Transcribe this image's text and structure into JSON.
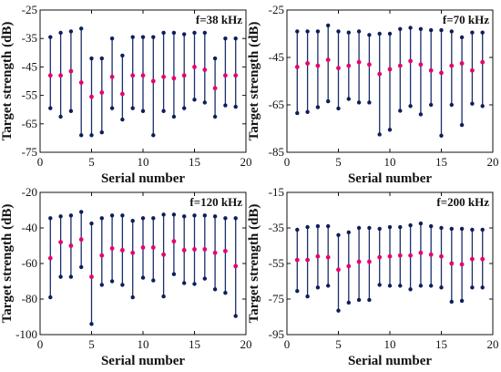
{
  "chart_data": [
    {
      "type": "errorbar",
      "annotation": "f=38 kHz",
      "xlabel": "Serial number",
      "ylabel": "Target strength (dB)",
      "xlim": [
        0,
        20
      ],
      "ylim": [
        -75,
        -25
      ],
      "xticks": [
        0,
        5,
        10,
        15,
        20
      ],
      "yticks": [
        -25,
        -35,
        -45,
        -55,
        -65,
        -75
      ],
      "x": [
        1,
        2,
        3,
        4,
        5,
        6,
        7,
        8,
        9,
        10,
        11,
        12,
        13,
        14,
        15,
        16,
        17,
        18,
        19
      ],
      "mean": [
        -48,
        -48,
        -46.5,
        -50.5,
        -55.5,
        -54,
        -48.5,
        -54.5,
        -48,
        -48,
        -50,
        -48.5,
        -49,
        -48,
        -45,
        -46,
        -52.5,
        -48,
        -48
      ],
      "max": [
        -34.5,
        -33,
        -32.5,
        -31.5,
        -42,
        -42,
        -35,
        -41,
        -34.5,
        -34.5,
        -34.5,
        -33,
        -33,
        -33.5,
        -33,
        -33,
        -42,
        -35,
        -35
      ],
      "min": [
        -59.5,
        -62.5,
        -60.5,
        -69,
        -69,
        -68,
        -59.5,
        -63.5,
        -59.5,
        -60.5,
        -69,
        -60.5,
        -62.5,
        -59.5,
        -56.5,
        -57.5,
        -62.5,
        -58.5,
        -59
      ]
    },
    {
      "type": "errorbar",
      "annotation": "f=70 kHz",
      "xlabel": "Serial number",
      "ylabel": "Target strength (dB)",
      "xlim": [
        0,
        20
      ],
      "ylim": [
        -85,
        -25
      ],
      "xticks": [
        0,
        5,
        10,
        15,
        20
      ],
      "yticks": [
        -25,
        -45,
        -65,
        -85
      ],
      "x": [
        1,
        2,
        3,
        4,
        5,
        6,
        7,
        8,
        9,
        10,
        11,
        12,
        13,
        14,
        15,
        16,
        17,
        18,
        19
      ],
      "mean": [
        -49,
        -47.5,
        -48.5,
        -46,
        -49.5,
        -48.5,
        -47,
        -48,
        -52,
        -50,
        -48.5,
        -46.5,
        -48,
        -50.5,
        -51.5,
        -48.5,
        -47.5,
        -50.5,
        -47
      ],
      "max": [
        -34,
        -34,
        -34,
        -31.5,
        -34,
        -34.5,
        -34,
        -35.5,
        -35,
        -35,
        -33,
        -32.5,
        -33,
        -33.5,
        -33.5,
        -34,
        -36.5,
        -34.5,
        -34.5
      ],
      "min": [
        -68.5,
        -68,
        -66,
        -63.5,
        -66.5,
        -62.5,
        -64,
        -64,
        -77.5,
        -75.5,
        -67.5,
        -65.5,
        -69,
        -65,
        -78,
        -65,
        -73.5,
        -64.5,
        -65.5
      ]
    },
    {
      "type": "errorbar",
      "annotation": "f=120 kHz",
      "xlabel": "Serial number",
      "ylabel": "Target strength (dB)",
      "xlim": [
        0,
        20
      ],
      "ylim": [
        -100,
        -20
      ],
      "xticks": [
        0,
        5,
        10,
        15,
        20
      ],
      "yticks": [
        -20,
        -40,
        -60,
        -80,
        -100
      ],
      "x": [
        1,
        2,
        3,
        4,
        5,
        6,
        7,
        8,
        9,
        10,
        11,
        12,
        13,
        14,
        15,
        16,
        17,
        18,
        19
      ],
      "mean": [
        -57,
        -48,
        -50,
        -46.5,
        -67.5,
        -55.5,
        -51.5,
        -52.5,
        -54,
        -51,
        -51,
        -55,
        -47.5,
        -52.5,
        -52,
        -52,
        -54,
        -53,
        -61.5
      ],
      "max": [
        -34.5,
        -33.5,
        -33,
        -31,
        -37.5,
        -34.5,
        -33,
        -33,
        -36,
        -34.5,
        -34.5,
        -32.5,
        -32.5,
        -33.5,
        -33,
        -33,
        -33.5,
        -34.5,
        -34.5
      ],
      "min": [
        -79,
        -67.5,
        -67.5,
        -62,
        -94,
        -72,
        -70,
        -72,
        -79,
        -68,
        -69.5,
        -78.5,
        -66,
        -71,
        -71.5,
        -68.5,
        -74.5,
        -76.5,
        -89.5
      ]
    },
    {
      "type": "errorbar",
      "annotation": "f=200 kHz",
      "xlabel": "Serial number",
      "ylabel": "Target strength (dB)",
      "xlim": [
        0,
        20
      ],
      "ylim": [
        -95,
        -15
      ],
      "xticks": [
        0,
        5,
        10,
        15,
        20
      ],
      "yticks": [
        -15,
        -35,
        -55,
        -75,
        -95
      ],
      "x": [
        1,
        2,
        3,
        4,
        5,
        6,
        7,
        8,
        9,
        10,
        11,
        12,
        13,
        14,
        15,
        16,
        17,
        18,
        19
      ],
      "mean": [
        -53,
        -53,
        -51,
        -51.5,
        -58.5,
        -56.5,
        -54,
        -54,
        -51.5,
        -51,
        -50.5,
        -50.5,
        -49,
        -50,
        -51,
        -55,
        -55.5,
        -52.5,
        -52.5
      ],
      "max": [
        -36,
        -34.5,
        -34,
        -34,
        -39,
        -37.5,
        -35,
        -35,
        -35.5,
        -34.5,
        -34.5,
        -33.5,
        -32.5,
        -34,
        -35,
        -35.5,
        -35.5,
        -36,
        -36
      ],
      "min": [
        -70.5,
        -73.5,
        -68.5,
        -67.5,
        -81.5,
        -77,
        -75.5,
        -75.5,
        -67,
        -67.5,
        -67.5,
        -69.5,
        -67.5,
        -67.5,
        -68.5,
        -76.5,
        -76,
        -68.5,
        -68.5
      ]
    }
  ],
  "colors": {
    "bar": "#1a2f6b",
    "cap_dot": "#0d1e5a",
    "mean_dot": "#e8006e",
    "axis": "#111111",
    "background": "#ffffff"
  }
}
